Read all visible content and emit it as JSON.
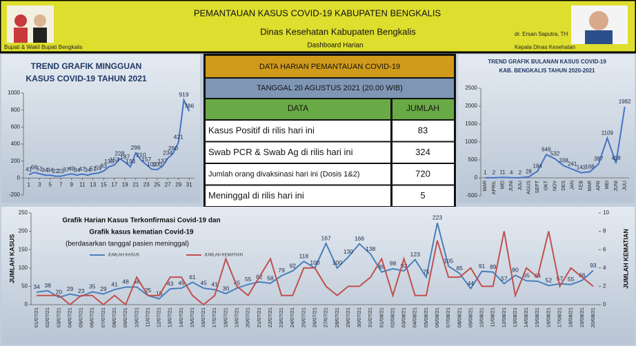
{
  "header": {
    "title": "PEMANTAUAN KASUS COVID-19 KABUPATEN BENGKALIS",
    "subtitle": "Dinas Kesehatan Kabupaten Bengkalis",
    "caption": "Dashboard Harian",
    "left_caption": "Bupati & Wakil Bupati Bengkalis",
    "right_name": "dr. Ersan Saputra, TH",
    "right_caption": "Kepala Dinas Kesehatan"
  },
  "table": {
    "title": "DATA HARIAN PEMANTAUAN COVID-19",
    "date": "TANGGAL 20 AGUSTUS 2021 (20.00 WIB)",
    "columns": [
      "DATA",
      "JUMLAH"
    ],
    "rows": [
      [
        "Kasus Positif di rilis hari ini",
        83
      ],
      [
        "Swab PCR & Swab Ag  di rilis hari ini",
        324
      ],
      [
        "Jumlah orang divaksinasi hari ini (Dosis 1&2)",
        720
      ],
      [
        "Meninggal di rilis hari ini",
        5
      ]
    ]
  },
  "chart_data": [
    {
      "type": "line",
      "title_lines": [
        "TREND GRAFIK MINGGUAN",
        "KASUS COVID-19 TAHUN 2021"
      ],
      "x": [
        1,
        2,
        3,
        4,
        5,
        6,
        7,
        8,
        9,
        10,
        11,
        12,
        13,
        14,
        15,
        16,
        17,
        18,
        19,
        20,
        21,
        22,
        23,
        24,
        25,
        26,
        27,
        28,
        29,
        30,
        31
      ],
      "xlim": [
        0,
        32
      ],
      "xticks": [
        1,
        3,
        5,
        7,
        9,
        11,
        13,
        15,
        17,
        19,
        21,
        23,
        25,
        27,
        29,
        31
      ],
      "ylim": [
        -200,
        1000
      ],
      "yticks": [
        -200,
        0,
        200,
        400,
        600,
        800,
        1000
      ],
      "series": [
        {
          "name": "Kasus",
          "color": "#4472c4",
          "values": [
            41,
            66,
            51,
            34,
            34,
            22,
            22,
            37,
            49,
            34,
            47,
            34,
            51,
            59,
            83,
            133,
            153,
            228,
            187,
            133,
            296,
            210,
            157,
            103,
            100,
            137,
            234,
            290,
            421,
            919,
            786
          ]
        }
      ]
    },
    {
      "type": "line",
      "title_lines": [
        "TREND  GRAFIK BULANAN KASUS COVID-19",
        "KAB. BENGKALIS TAHUN 2020-2021"
      ],
      "categories": [
        "MAR",
        "APRIL",
        "MEI",
        "JUNI",
        "JULI",
        "AGUS",
        "SEPT",
        "OKT",
        "NOV",
        "DES",
        "JAN",
        "FEB",
        "MAR",
        "APR",
        "MEI",
        "JUNI",
        "JULI"
      ],
      "ylim": [
        -500,
        2500
      ],
      "yticks": [
        -500,
        0,
        500,
        1000,
        1500,
        2000,
        2500
      ],
      "series": [
        {
          "name": "Kasus",
          "color": "#4472c4",
          "values": [
            1,
            2,
            11,
            4,
            2,
            28,
            184,
            649,
            532,
            338,
            241,
            143,
            168,
            387,
            1109,
            408,
            1982
          ]
        }
      ]
    },
    {
      "type": "line",
      "title_lines": [
        "Grafik Harian Kasus Terkonfirmasi  Covid-19 dan",
        "Grafik kasus kematian Covid-19",
        "(berdasarkan tanggal pasien meninggal)"
      ],
      "ylabel": "JUMLAH  KASUS",
      "y2label": "JUMLAH  KEMATIAN",
      "categories": [
        "01/07/21",
        "02/07/21",
        "03/07/21",
        "04/07/21",
        "05/07/21",
        "06/07/21",
        "07/07/21",
        "08/07/21",
        "09/07/21",
        "10/07/21",
        "11/07/21",
        "12/07/21",
        "13/07/21",
        "14/07/21",
        "15/07/21",
        "16/07/21",
        "17/07/21",
        "18/07/21",
        "19/07/21",
        "20/07/21",
        "21/07/21",
        "22/07/21",
        "23/07/21",
        "24/07/21",
        "25/07/21",
        "26/07/21",
        "27/07/21",
        "28/07/21",
        "29/07/21",
        "30/07/21",
        "31/07/21",
        "01/08/21",
        "02/08/21",
        "03/08/21",
        "04/08/21",
        "05/08/21",
        "06/08/21",
        "07/08/21",
        "08/08/21",
        "09/08/21",
        "10/08/21",
        "11/08/21",
        "12/08/21",
        "13/08/21",
        "14/08/21",
        "15/08/21",
        "16/08/21",
        "17/08/21",
        "18/08/21",
        "19/08/21",
        "20/08/21"
      ],
      "ylim": [
        0,
        250
      ],
      "yticks": [
        0,
        50,
        100,
        150,
        200,
        250
      ],
      "y2lim": [
        0,
        10
      ],
      "y2ticks": [
        0,
        2,
        4,
        6,
        8,
        10
      ],
      "series": [
        {
          "name": "JUMLAH KASUS",
          "color": "#4a7ebb",
          "values": [
            34,
            38,
            20,
            29,
            23,
            35,
            29,
            41,
            48,
            48,
            25,
            16,
            43,
            45,
            61,
            45,
            41,
            30,
            45,
            55,
            62,
            58,
            79,
            92,
            118,
            100,
            167,
            100,
            130,
            166,
            138,
            89,
            98,
            92,
            123,
            75,
            223,
            105,
            85,
            44,
            91,
            89,
            57,
            80,
            65,
            64,
            52,
            57,
            55,
            66,
            93
          ]
        },
        {
          "name": "JUMLAH KEMATIAN",
          "color": "#c0504d",
          "axis": "y2",
          "values": [
            1,
            1,
            1,
            0,
            1,
            1,
            0,
            1,
            0,
            3,
            1,
            1,
            3,
            3,
            1,
            0,
            1,
            5,
            2,
            1,
            3,
            5,
            1,
            1,
            4,
            4,
            2,
            1,
            2,
            2,
            3,
            5,
            1,
            5,
            1,
            1,
            7,
            3,
            3,
            4,
            2,
            2,
            8,
            1,
            4,
            3,
            8,
            2,
            4,
            3,
            2
          ]
        }
      ]
    }
  ]
}
